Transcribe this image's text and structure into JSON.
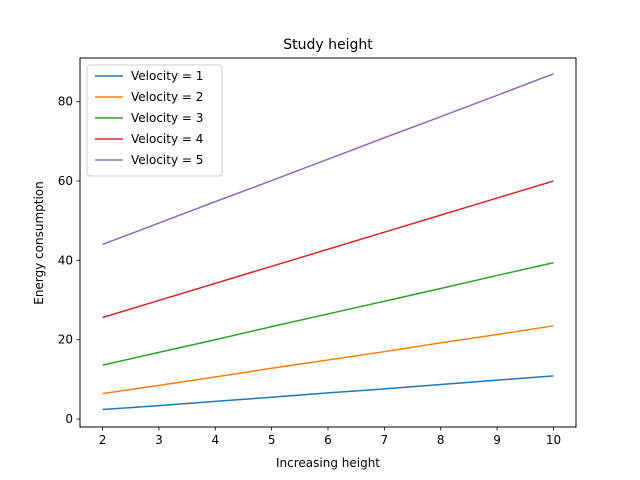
{
  "chart_data": {
    "type": "line",
    "title": "Study height",
    "xlabel": "Increasing height",
    "ylabel": "Energy consumption",
    "x": [
      2,
      3,
      4,
      5,
      6,
      7,
      8,
      9,
      10
    ],
    "xlim": [
      1.6,
      10.4
    ],
    "ylim": [
      -2,
      91
    ],
    "xticks": [
      2,
      3,
      4,
      5,
      6,
      7,
      8,
      9,
      10
    ],
    "yticks": [
      0,
      20,
      40,
      60,
      80
    ],
    "grid": false,
    "legend_position": "top-left",
    "series": [
      {
        "name": "Velocity = 1",
        "color": "#1f77b4",
        "values": [
          2.4,
          3.4,
          4.45,
          5.5,
          6.6,
          7.6,
          8.7,
          9.8,
          10.9
        ]
      },
      {
        "name": "Velocity = 2",
        "color": "#ff7f0e",
        "values": [
          6.4,
          8.5,
          10.6,
          12.8,
          14.9,
          17.0,
          19.2,
          21.3,
          23.5
        ]
      },
      {
        "name": "Velocity = 3",
        "color": "#2ca02c",
        "values": [
          13.6,
          16.8,
          20.0,
          23.3,
          26.5,
          29.7,
          32.9,
          36.2,
          39.4
        ]
      },
      {
        "name": "Velocity = 4",
        "color": "#d62728",
        "values": [
          25.6,
          29.9,
          34.2,
          38.5,
          42.8,
          47.1,
          51.4,
          55.7,
          60.0
        ]
      },
      {
        "name": "Velocity = 5",
        "color": "#9467bd",
        "values": [
          44.0,
          49.4,
          54.8,
          60.1,
          65.5,
          70.9,
          76.2,
          81.6,
          87.0
        ]
      }
    ]
  }
}
